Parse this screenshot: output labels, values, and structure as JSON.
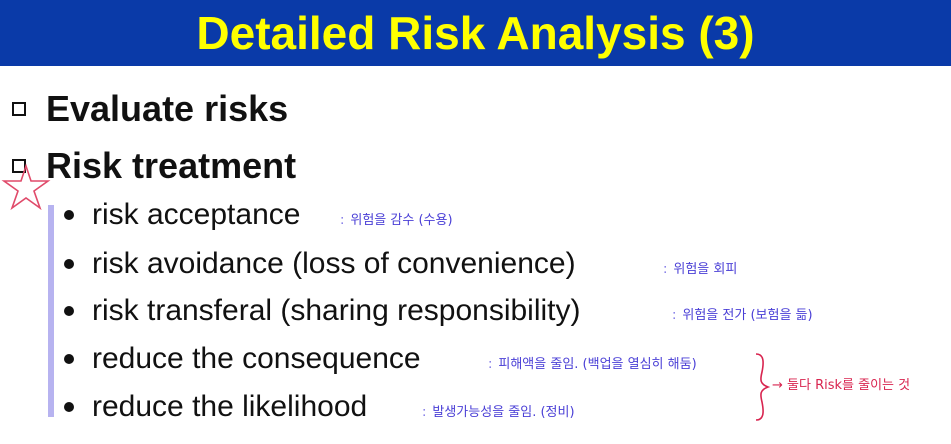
{
  "title": "Detailed Risk Analysis (3)",
  "items": [
    {
      "label": "Evaluate risks"
    },
    {
      "label": "Risk treatment"
    }
  ],
  "sub_items": [
    {
      "label": "risk acceptance",
      "note": "위험을 감수 (수용)"
    },
    {
      "label": "risk avoidance (loss of convenience)",
      "note": "위험을 회피"
    },
    {
      "label": "risk transferal (sharing responsibility)",
      "note": "위험을 전가 (보험을 듦)"
    },
    {
      "label": "reduce the consequence",
      "note": "피해액을 줄임. (백업을 열심히 해둠)"
    },
    {
      "label": "reduce the likelihood",
      "note": "발생가능성을 줄임. (정비)"
    }
  ],
  "side_note": "→ 둘다 Risk를 줄이는 것",
  "colors": {
    "title_bg": "#0a3aa8",
    "title_text": "#ffff00",
    "annotation_blue": "#4a3fd6",
    "annotation_red": "#d8244f",
    "bracket": "#b7b3f0"
  }
}
